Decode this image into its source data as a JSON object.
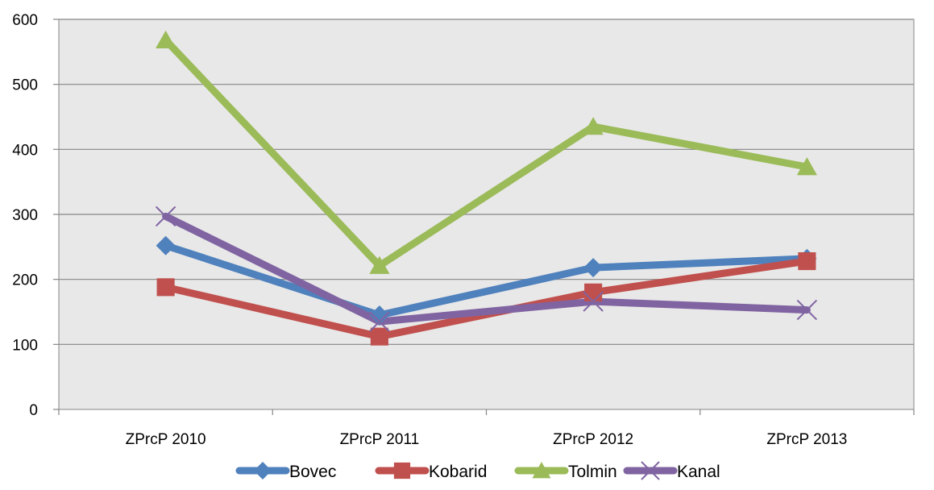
{
  "chart_data": {
    "type": "line",
    "categories": [
      "ZPrcP 2010",
      "ZPrcP 2011",
      "ZPrcP 2012",
      "ZPrcP 2013"
    ],
    "ylim": [
      0,
      600
    ],
    "yticks": [
      0,
      100,
      200,
      300,
      400,
      500,
      600
    ],
    "grid": true,
    "legend_position": "bottom",
    "series": [
      {
        "name": "Bovec",
        "values": [
          252,
          145,
          218,
          232
        ],
        "color": "#4F81BD",
        "marker": "diamond"
      },
      {
        "name": "Kobarid",
        "values": [
          188,
          112,
          180,
          228
        ],
        "color": "#C0504D",
        "marker": "square"
      },
      {
        "name": "Tolmin",
        "values": [
          568,
          221,
          435,
          373
        ],
        "color": "#9BBB59",
        "marker": "triangle"
      },
      {
        "name": "Kanal",
        "values": [
          297,
          135,
          166,
          153
        ],
        "color": "#8064A2",
        "marker": "x"
      }
    ]
  }
}
